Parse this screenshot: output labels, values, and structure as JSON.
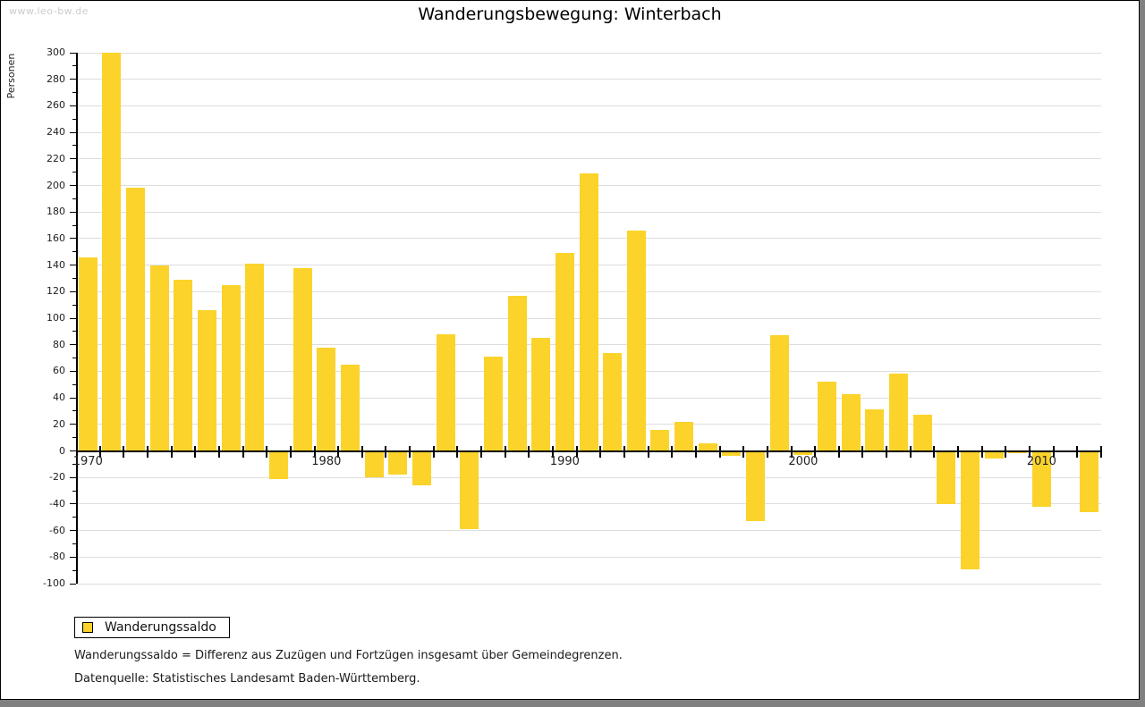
{
  "watermark": "www.leo-bw.de",
  "title": "Wanderungsbewegung: Winterbach",
  "legend": {
    "label": "Wanderungssaldo"
  },
  "footnotes": {
    "definition": "Wanderungssaldo = Differenz aus Zuzügen und Fortzügen insgesamt über Gemeindegrenzen.",
    "source": "Datenquelle: Statistisches Landesamt Baden-Württemberg."
  },
  "colors": {
    "bar": "#fbd32b",
    "grid": "#dedede",
    "axis": "#000000",
    "text": "#222222",
    "watermark": "#cccccc",
    "frame_shadow": "#808080"
  },
  "chart_data": {
    "type": "bar",
    "title": "Wanderungsbewegung: Winterbach",
    "xlabel": "",
    "ylabel": "Personen",
    "ylim": [
      -100,
      300
    ],
    "y_major_step": 20,
    "y_minor_step": 10,
    "grid": true,
    "legend_position": "bottom-left",
    "x_axis_decade_labels": [
      1970,
      1980,
      1990,
      2000,
      2010
    ],
    "series_name": "Wanderungssaldo",
    "categories": [
      1970,
      1971,
      1972,
      1973,
      1974,
      1975,
      1976,
      1977,
      1978,
      1979,
      1980,
      1981,
      1982,
      1983,
      1984,
      1985,
      1986,
      1987,
      1988,
      1989,
      1990,
      1991,
      1992,
      1993,
      1994,
      1995,
      1996,
      1997,
      1998,
      1999,
      2000,
      2001,
      2002,
      2003,
      2004,
      2005,
      2006,
      2007,
      2008,
      2009,
      2010,
      2011,
      2012
    ],
    "values": [
      146,
      300,
      198,
      140,
      129,
      106,
      125,
      141,
      -21,
      138,
      78,
      65,
      -20,
      -18,
      -26,
      88,
      -59,
      71,
      117,
      85,
      149,
      209,
      74,
      166,
      16,
      22,
      6,
      -4,
      -53,
      87,
      -3,
      52,
      43,
      31,
      58,
      27,
      -40,
      -89,
      -6,
      -2,
      -42,
      0,
      -46
    ]
  }
}
